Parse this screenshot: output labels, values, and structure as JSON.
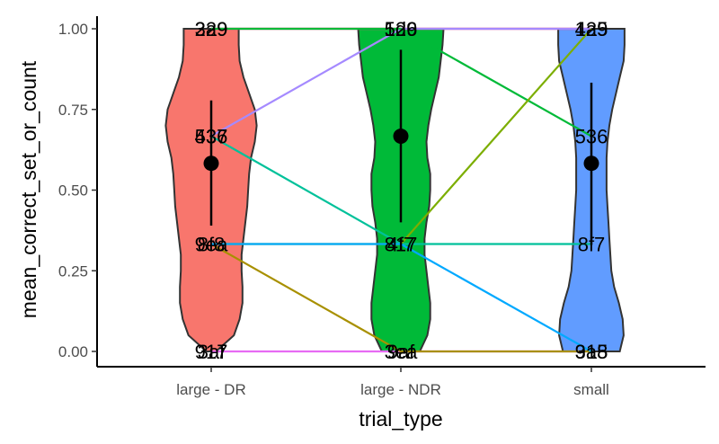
{
  "chart_data": {
    "type": "violin",
    "xlabel": "trial_type",
    "ylabel": "mean_correct_set_or_count",
    "categories": [
      "large - DR",
      "large - NDR",
      "small"
    ],
    "ylim": [
      0,
      1
    ],
    "yticks": [
      0,
      0.25,
      0.5,
      0.75,
      1
    ],
    "ytick_labels": [
      "0.00",
      "0.25",
      "0.50",
      "0.75",
      "1.00"
    ],
    "legend": "none",
    "grid": false,
    "colors": {
      "large - DR": "#F8766D",
      "large - NDR": "#00BA38",
      "small": "#619CFF"
    },
    "violins": [
      {
        "category": "large - DR",
        "fill": "#F8766D",
        "profile": [
          [
            0,
            0.05
          ],
          [
            0.05,
            0.24
          ],
          [
            0.1,
            0.3
          ],
          [
            0.15,
            0.33
          ],
          [
            0.2,
            0.33
          ],
          [
            0.25,
            0.32
          ],
          [
            0.3,
            0.32
          ],
          [
            0.35,
            0.34
          ],
          [
            0.4,
            0.36
          ],
          [
            0.45,
            0.38
          ],
          [
            0.5,
            0.39
          ],
          [
            0.55,
            0.4
          ],
          [
            0.6,
            0.42
          ],
          [
            0.65,
            0.46
          ],
          [
            0.7,
            0.48
          ],
          [
            0.75,
            0.46
          ],
          [
            0.8,
            0.4
          ],
          [
            0.85,
            0.34
          ],
          [
            0.9,
            0.3
          ],
          [
            0.95,
            0.29
          ],
          [
            1,
            0.29
          ]
        ]
      },
      {
        "category": "large - NDR",
        "fill": "#00BA38",
        "profile": [
          [
            0,
            0.2
          ],
          [
            0.05,
            0.28
          ],
          [
            0.1,
            0.31
          ],
          [
            0.15,
            0.31
          ],
          [
            0.2,
            0.29
          ],
          [
            0.25,
            0.27
          ],
          [
            0.3,
            0.25
          ],
          [
            0.35,
            0.25
          ],
          [
            0.4,
            0.27
          ],
          [
            0.45,
            0.3
          ],
          [
            0.5,
            0.31
          ],
          [
            0.55,
            0.31
          ],
          [
            0.6,
            0.28
          ],
          [
            0.65,
            0.27
          ],
          [
            0.7,
            0.29
          ],
          [
            0.75,
            0.32
          ],
          [
            0.8,
            0.36
          ],
          [
            0.85,
            0.4
          ],
          [
            0.9,
            0.42
          ],
          [
            0.95,
            0.44
          ],
          [
            1,
            0.45
          ]
        ]
      },
      {
        "category": "small",
        "fill": "#619CFF",
        "profile": [
          [
            0,
            0.3
          ],
          [
            0.05,
            0.34
          ],
          [
            0.1,
            0.33
          ],
          [
            0.15,
            0.29
          ],
          [
            0.2,
            0.24
          ],
          [
            0.25,
            0.21
          ],
          [
            0.3,
            0.2
          ],
          [
            0.35,
            0.19
          ],
          [
            0.4,
            0.18
          ],
          [
            0.45,
            0.17
          ],
          [
            0.5,
            0.16
          ],
          [
            0.55,
            0.16
          ],
          [
            0.6,
            0.16
          ],
          [
            0.65,
            0.17
          ],
          [
            0.7,
            0.19
          ],
          [
            0.75,
            0.22
          ],
          [
            0.8,
            0.26
          ],
          [
            0.85,
            0.3
          ],
          [
            0.9,
            0.34
          ],
          [
            0.95,
            0.35
          ],
          [
            1,
            0.35
          ]
        ]
      }
    ],
    "summaries": [
      {
        "category": "large - DR",
        "mean": 0.583,
        "lower": 0.39,
        "upper": 0.778
      },
      {
        "category": "large - NDR",
        "mean": 0.667,
        "lower": 0.4,
        "upper": 0.935
      },
      {
        "category": "small",
        "mean": 0.583,
        "lower": 0.33,
        "upper": 0.833
      }
    ],
    "subject_lines": [
      {
        "color": "#F8766D",
        "values": [
          1,
          1,
          1
        ]
      },
      {
        "color": "#E76BF3",
        "values": [
          0,
          0,
          0
        ]
      },
      {
        "color": "#E7298A",
        "values": [
          1,
          1,
          1
        ]
      },
      {
        "color": "#A58AFF",
        "values": [
          0.667,
          1,
          1
        ]
      },
      {
        "color": "#00C19A",
        "values": [
          0.667,
          0.333,
          0.333
        ]
      },
      {
        "color": "#00BA38",
        "values": [
          1,
          1,
          0.667
        ]
      },
      {
        "color": "#7CAE00",
        "values": [
          0.333,
          0.333,
          1
        ]
      },
      {
        "color": "#A89000",
        "values": [
          0.333,
          0,
          0
        ]
      },
      {
        "color": "#00A9FF",
        "values": [
          0.333,
          0.333,
          0
        ]
      }
    ],
    "point_labels": [
      {
        "category": "large - DR",
        "y": 1.0,
        "text": "229"
      },
      {
        "category": "large - DR",
        "y": 1.0,
        "text": "3a9"
      },
      {
        "category": "large - DR",
        "y": 0.667,
        "text": "437"
      },
      {
        "category": "large - DR",
        "y": 0.667,
        "text": "536"
      },
      {
        "category": "large - DR",
        "y": 0.333,
        "text": "9ea"
      },
      {
        "category": "large - DR",
        "y": 0.333,
        "text": "8f8"
      },
      {
        "category": "large - DR",
        "y": 0.0,
        "text": "917"
      },
      {
        "category": "large - DR",
        "y": 0.0,
        "text": "3af"
      },
      {
        "category": "large - NDR",
        "y": 1.0,
        "text": "529"
      },
      {
        "category": "large - NDR",
        "y": 1.0,
        "text": "1d6"
      },
      {
        "category": "large - NDR",
        "y": 0.333,
        "text": "4f7"
      },
      {
        "category": "large - NDR",
        "y": 0.333,
        "text": "817"
      },
      {
        "category": "large - NDR",
        "y": 0.0,
        "text": "3ea"
      },
      {
        "category": "large - NDR",
        "y": 0.0,
        "text": "9af"
      },
      {
        "category": "small",
        "y": 1.0,
        "text": "425"
      },
      {
        "category": "small",
        "y": 1.0,
        "text": "1a9"
      },
      {
        "category": "small",
        "y": 0.667,
        "text": "536"
      },
      {
        "category": "small",
        "y": 0.333,
        "text": "8f7"
      },
      {
        "category": "small",
        "y": 0.0,
        "text": "915"
      },
      {
        "category": "small",
        "y": 0.0,
        "text": "3a8"
      }
    ]
  }
}
